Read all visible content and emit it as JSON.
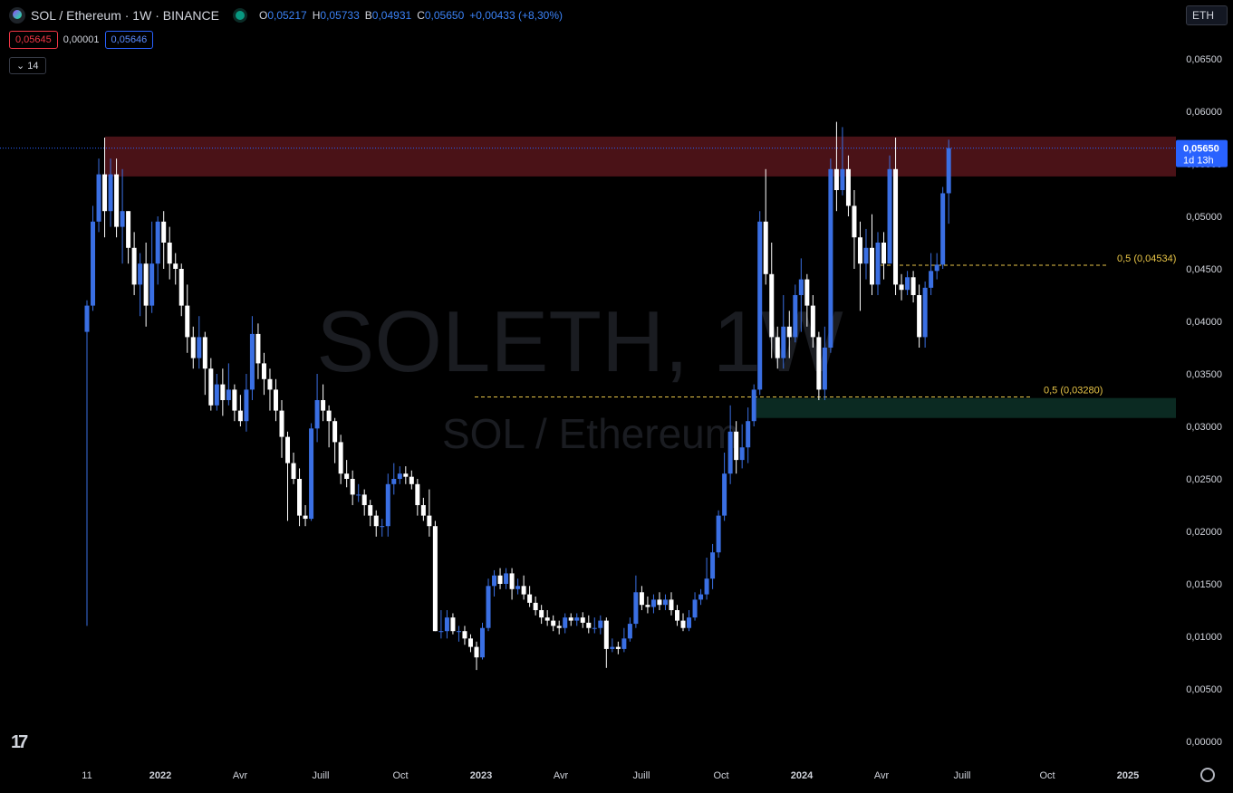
{
  "header": {
    "symbol": "SOL / Ethereum · 1W · BINANCE",
    "o_label": "O",
    "o_value": "0,05217",
    "h_label": "H",
    "h_value": "0,05733",
    "b_label": "B",
    "b_value": "0,04931",
    "c_label": "C",
    "c_value": "0,05650",
    "change": "+0,00433 (+8,30%)"
  },
  "quote": {
    "bid": "0,05645",
    "spread": "0,00001",
    "ask": "0,05646"
  },
  "indicator_toggle": "14",
  "currency_button": "ETH",
  "watermark": {
    "line1": "SOLETH, 1W",
    "line2": "SOL / Ethereum"
  },
  "colors": {
    "up": "#3a6fe3",
    "down": "#ffffff",
    "resistance": "#4a1217",
    "support": "#0b2a22",
    "fib_line": "#e8c547",
    "axis_text": "#d1d4dc"
  },
  "chart_data": {
    "type": "candlestick",
    "ylim": [
      0.0,
      0.0685
    ],
    "y_ticks": [
      {
        "v": 0.065,
        "label": "0,06500"
      },
      {
        "v": 0.06,
        "label": "0,06000"
      },
      {
        "v": 0.055,
        "label": "0,05500"
      },
      {
        "v": 0.05,
        "label": "0,05000"
      },
      {
        "v": 0.045,
        "label": "0,04500"
      },
      {
        "v": 0.04,
        "label": "0,04000"
      },
      {
        "v": 0.035,
        "label": "0,03500"
      },
      {
        "v": 0.03,
        "label": "0,03000"
      },
      {
        "v": 0.025,
        "label": "0,02500"
      },
      {
        "v": 0.02,
        "label": "0,02000"
      },
      {
        "v": 0.015,
        "label": "0,01500"
      },
      {
        "v": 0.01,
        "label": "0,01000"
      },
      {
        "v": 0.005,
        "label": "0,00500"
      },
      {
        "v": 0.0,
        "label": "0,00000"
      }
    ],
    "x_ticks": [
      "11",
      "2022",
      "Avr",
      "Juill",
      "Oct",
      "2023",
      "Avr",
      "Juill",
      "Oct",
      "2024",
      "Avr",
      "Juill",
      "Oct",
      "2025"
    ],
    "last_price": {
      "value": 0.0565,
      "label": "0,05650",
      "countdown": "1d 13h"
    },
    "zones": [
      {
        "name": "resistance",
        "from": 0.0538,
        "to": 0.0576
      },
      {
        "name": "support",
        "from": 0.0308,
        "to": 0.0327
      }
    ],
    "fib_levels": [
      {
        "value": 0.04534,
        "label": "0,5 (0,04534)"
      },
      {
        "value": 0.0328,
        "label": "0,5 (0,03280)"
      }
    ],
    "candles": [
      [
        0.039,
        0.0415,
        0.011,
        0.042
      ],
      [
        0.0415,
        0.0495,
        0.041,
        0.051
      ],
      [
        0.0495,
        0.054,
        0.0485,
        0.0555
      ],
      [
        0.054,
        0.0505,
        0.048,
        0.0575
      ],
      [
        0.0505,
        0.054,
        0.049,
        0.0555
      ],
      [
        0.054,
        0.049,
        0.048,
        0.0555
      ],
      [
        0.049,
        0.0505,
        0.0455,
        0.0545
      ],
      [
        0.0505,
        0.047,
        0.0455,
        0.0505
      ],
      [
        0.047,
        0.0435,
        0.0425,
        0.0485
      ],
      [
        0.0435,
        0.0455,
        0.0405,
        0.0465
      ],
      [
        0.0455,
        0.0415,
        0.0395,
        0.0475
      ],
      [
        0.0415,
        0.0455,
        0.0408,
        0.0495
      ],
      [
        0.0455,
        0.0495,
        0.0435,
        0.05
      ],
      [
        0.0495,
        0.0475,
        0.045,
        0.0505
      ],
      [
        0.0475,
        0.0455,
        0.044,
        0.049
      ],
      [
        0.0455,
        0.045,
        0.0435,
        0.0465
      ],
      [
        0.045,
        0.0415,
        0.0405,
        0.0455
      ],
      [
        0.0415,
        0.0385,
        0.037,
        0.0435
      ],
      [
        0.0385,
        0.0365,
        0.0355,
        0.0395
      ],
      [
        0.0365,
        0.0385,
        0.0355,
        0.0405
      ],
      [
        0.0385,
        0.0355,
        0.033,
        0.039
      ],
      [
        0.0355,
        0.032,
        0.0315,
        0.0365
      ],
      [
        0.032,
        0.034,
        0.0315,
        0.035
      ],
      [
        0.034,
        0.0325,
        0.031,
        0.0355
      ],
      [
        0.0325,
        0.0335,
        0.032,
        0.036
      ],
      [
        0.0335,
        0.0315,
        0.0305,
        0.034
      ],
      [
        0.0315,
        0.0305,
        0.03,
        0.033
      ],
      [
        0.0305,
        0.0335,
        0.0295,
        0.035
      ],
      [
        0.0335,
        0.0388,
        0.0325,
        0.0405
      ],
      [
        0.0388,
        0.036,
        0.0345,
        0.0398
      ],
      [
        0.036,
        0.0345,
        0.033,
        0.037
      ],
      [
        0.0345,
        0.0335,
        0.0315,
        0.0355
      ],
      [
        0.0335,
        0.0315,
        0.0305,
        0.0345
      ],
      [
        0.0315,
        0.029,
        0.027,
        0.0325
      ],
      [
        0.029,
        0.0265,
        0.021,
        0.0295
      ],
      [
        0.0265,
        0.025,
        0.0245,
        0.0275
      ],
      [
        0.025,
        0.0215,
        0.0205,
        0.026
      ],
      [
        0.0215,
        0.0212,
        0.0205,
        0.0225
      ],
      [
        0.0212,
        0.0298,
        0.021,
        0.0303
      ],
      [
        0.0298,
        0.0325,
        0.0285,
        0.035
      ],
      [
        0.0325,
        0.0315,
        0.0305,
        0.034
      ],
      [
        0.0315,
        0.0305,
        0.028,
        0.032
      ],
      [
        0.0305,
        0.0285,
        0.0265,
        0.0308
      ],
      [
        0.0285,
        0.0255,
        0.0245,
        0.0292
      ],
      [
        0.0255,
        0.025,
        0.0242,
        0.0268
      ],
      [
        0.025,
        0.0235,
        0.0225,
        0.0258
      ],
      [
        0.0235,
        0.0235,
        0.0228,
        0.0245
      ],
      [
        0.0235,
        0.0225,
        0.0215,
        0.024
      ],
      [
        0.0225,
        0.0215,
        0.0205,
        0.023
      ],
      [
        0.0215,
        0.0205,
        0.0195,
        0.022
      ],
      [
        0.0205,
        0.0205,
        0.0195,
        0.0212
      ],
      [
        0.0205,
        0.0245,
        0.0195,
        0.0255
      ],
      [
        0.0245,
        0.025,
        0.0235,
        0.0265
      ],
      [
        0.025,
        0.0255,
        0.0245,
        0.0262
      ],
      [
        0.0255,
        0.0252,
        0.0245,
        0.0262
      ],
      [
        0.0252,
        0.0245,
        0.024,
        0.0258
      ],
      [
        0.0245,
        0.0225,
        0.0215,
        0.025
      ],
      [
        0.0225,
        0.0215,
        0.021,
        0.0232
      ],
      [
        0.0215,
        0.0205,
        0.0195,
        0.024
      ],
      [
        0.0205,
        0.0105,
        0.0105,
        0.021
      ],
      [
        0.0105,
        0.0105,
        0.0098,
        0.0125
      ],
      [
        0.0105,
        0.0118,
        0.0098,
        0.0125
      ],
      [
        0.0118,
        0.0105,
        0.0102,
        0.0122
      ],
      [
        0.0105,
        0.0105,
        0.0095,
        0.011
      ],
      [
        0.0105,
        0.0098,
        0.0092,
        0.011
      ],
      [
        0.0098,
        0.009,
        0.0085,
        0.0102
      ],
      [
        0.009,
        0.008,
        0.0068,
        0.0095
      ],
      [
        0.008,
        0.0108,
        0.0078,
        0.0113
      ],
      [
        0.0108,
        0.0148,
        0.0105,
        0.0155
      ],
      [
        0.0148,
        0.0158,
        0.0138,
        0.0163
      ],
      [
        0.0158,
        0.015,
        0.0145,
        0.0165
      ],
      [
        0.015,
        0.016,
        0.0145,
        0.0165
      ],
      [
        0.016,
        0.0145,
        0.0135,
        0.0165
      ],
      [
        0.0145,
        0.0148,
        0.014,
        0.0155
      ],
      [
        0.0148,
        0.014,
        0.0135,
        0.0158
      ],
      [
        0.014,
        0.0132,
        0.0128,
        0.0148
      ],
      [
        0.0132,
        0.0125,
        0.012,
        0.0138
      ],
      [
        0.0125,
        0.0118,
        0.0112,
        0.013
      ],
      [
        0.0118,
        0.0115,
        0.011,
        0.0125
      ],
      [
        0.0115,
        0.011,
        0.0105,
        0.012
      ],
      [
        0.011,
        0.0108,
        0.0102,
        0.0115
      ],
      [
        0.0108,
        0.0118,
        0.0103,
        0.0122
      ],
      [
        0.0118,
        0.0115,
        0.011,
        0.0122
      ],
      [
        0.0115,
        0.0118,
        0.011,
        0.0122
      ],
      [
        0.0118,
        0.0113,
        0.0108,
        0.0123
      ],
      [
        0.0113,
        0.0108,
        0.0103,
        0.012
      ],
      [
        0.0108,
        0.0108,
        0.0103,
        0.0118
      ],
      [
        0.0108,
        0.0115,
        0.0102,
        0.012
      ],
      [
        0.0115,
        0.0088,
        0.007,
        0.0118
      ],
      [
        0.0088,
        0.009,
        0.0085,
        0.0098
      ],
      [
        0.009,
        0.0088,
        0.0083,
        0.0095
      ],
      [
        0.0088,
        0.0098,
        0.0085,
        0.0108
      ],
      [
        0.0098,
        0.0112,
        0.0095,
        0.0118
      ],
      [
        0.0112,
        0.0142,
        0.0108,
        0.0158
      ],
      [
        0.0142,
        0.013,
        0.0125,
        0.0148
      ],
      [
        0.013,
        0.0128,
        0.0122,
        0.0138
      ],
      [
        0.0128,
        0.0135,
        0.0122,
        0.014
      ],
      [
        0.0135,
        0.013,
        0.0125,
        0.0142
      ],
      [
        0.013,
        0.0135,
        0.0125,
        0.014
      ],
      [
        0.0135,
        0.0125,
        0.012,
        0.0142
      ],
      [
        0.0125,
        0.0115,
        0.011,
        0.013
      ],
      [
        0.0115,
        0.0108,
        0.0105,
        0.0122
      ],
      [
        0.0108,
        0.0118,
        0.0105,
        0.0125
      ],
      [
        0.0118,
        0.0135,
        0.0115,
        0.0142
      ],
      [
        0.0135,
        0.014,
        0.013,
        0.0145
      ],
      [
        0.014,
        0.0155,
        0.0135,
        0.0175
      ],
      [
        0.0155,
        0.018,
        0.0145,
        0.0188
      ],
      [
        0.018,
        0.0215,
        0.0175,
        0.022
      ],
      [
        0.0215,
        0.0255,
        0.021,
        0.0275
      ],
      [
        0.0255,
        0.0295,
        0.0245,
        0.032
      ],
      [
        0.0295,
        0.0268,
        0.0255,
        0.0305
      ],
      [
        0.0268,
        0.028,
        0.026,
        0.0302
      ],
      [
        0.028,
        0.0305,
        0.0265,
        0.0318
      ],
      [
        0.0305,
        0.0335,
        0.03,
        0.034
      ],
      [
        0.0335,
        0.0495,
        0.033,
        0.0505
      ],
      [
        0.0495,
        0.0445,
        0.0435,
        0.0545
      ],
      [
        0.0445,
        0.0385,
        0.0365,
        0.0475
      ],
      [
        0.0385,
        0.0365,
        0.0355,
        0.0395
      ],
      [
        0.0365,
        0.0395,
        0.0355,
        0.0425
      ],
      [
        0.0395,
        0.0385,
        0.0365,
        0.041
      ],
      [
        0.0385,
        0.0425,
        0.038,
        0.0435
      ],
      [
        0.0425,
        0.044,
        0.039,
        0.046
      ],
      [
        0.044,
        0.0415,
        0.0395,
        0.0445
      ],
      [
        0.0415,
        0.0385,
        0.0375,
        0.0425
      ],
      [
        0.0385,
        0.0335,
        0.0325,
        0.039
      ],
      [
        0.0335,
        0.0375,
        0.0325,
        0.0395
      ],
      [
        0.0375,
        0.0545,
        0.037,
        0.0555
      ],
      [
        0.0545,
        0.0525,
        0.0505,
        0.059
      ],
      [
        0.0525,
        0.0545,
        0.052,
        0.0585
      ],
      [
        0.0545,
        0.051,
        0.05,
        0.0558
      ],
      [
        0.051,
        0.048,
        0.045,
        0.0525
      ],
      [
        0.048,
        0.0455,
        0.041,
        0.0495
      ],
      [
        0.0455,
        0.047,
        0.044,
        0.0488
      ],
      [
        0.047,
        0.0435,
        0.0425,
        0.0502
      ],
      [
        0.0435,
        0.0475,
        0.0425,
        0.0485
      ],
      [
        0.0475,
        0.0455,
        0.044,
        0.0485
      ],
      [
        0.0455,
        0.0545,
        0.0455,
        0.0558
      ],
      [
        0.0545,
        0.0435,
        0.0425,
        0.0575
      ],
      [
        0.0435,
        0.043,
        0.042,
        0.0445
      ],
      [
        0.043,
        0.0442,
        0.0425,
        0.0448
      ],
      [
        0.0442,
        0.0425,
        0.0418,
        0.0448
      ],
      [
        0.0425,
        0.0385,
        0.0375,
        0.0435
      ],
      [
        0.0385,
        0.0432,
        0.0375,
        0.0438
      ],
      [
        0.0432,
        0.0448,
        0.0425,
        0.0465
      ],
      [
        0.0448,
        0.0454,
        0.044,
        0.0465
      ],
      [
        0.0454,
        0.0522,
        0.045,
        0.0528
      ],
      [
        0.0522,
        0.0565,
        0.0493,
        0.0573
      ]
    ]
  }
}
